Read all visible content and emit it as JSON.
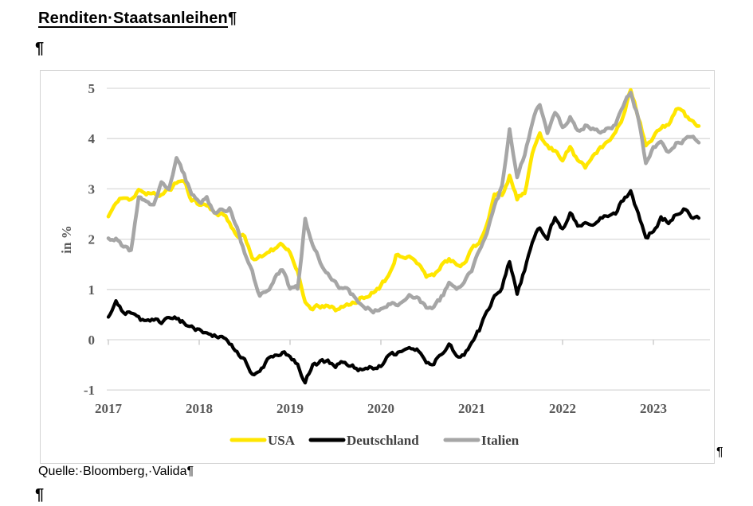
{
  "document": {
    "title": {
      "text": "Renditen·Staatsanleihen",
      "paragraph_mark": "¶"
    },
    "empty_paragraph_mark": "¶",
    "chart_trailing_paragraph_mark": "¶",
    "source_line": {
      "text": "Quelle:·Bloomberg,·Valida",
      "paragraph_mark": "¶"
    },
    "final_paragraph_mark": "¶"
  },
  "style": {
    "gridline_color": "#d9d9d9",
    "axis_tick_color": "#c6c6c6",
    "axis_text_color": "#595959",
    "legend_text_color": "#404040",
    "chart_border_color": "#d4d4d4",
    "usa_color": "#ffe600",
    "deutschland_color": "#000000",
    "italien_color": "#a6a6a6"
  },
  "chart_data": {
    "type": "line",
    "title": "",
    "xlabel": "",
    "ylabel": "in %",
    "ylim": [
      -1,
      5
    ],
    "y_ticks": [
      -1,
      0,
      1,
      2,
      3,
      4,
      5
    ],
    "x_tick_labels": [
      "2017",
      "2018",
      "2019",
      "2020",
      "2021",
      "2022",
      "2023"
    ],
    "x_span_years": 6.5,
    "points_per_year": 12,
    "grid": true,
    "legend_position": "bottom",
    "series": [
      {
        "name": "USA",
        "color": "#ffe600",
        "values": [
          2.45,
          2.75,
          2.82,
          2.8,
          2.95,
          2.88,
          2.92,
          2.89,
          2.98,
          3.12,
          3.18,
          2.77,
          2.68,
          2.68,
          2.5,
          2.52,
          2.32,
          2.05,
          2.05,
          1.6,
          1.68,
          1.72,
          1.8,
          1.88,
          1.72,
          1.4,
          0.72,
          0.64,
          0.67,
          0.7,
          0.58,
          0.66,
          0.68,
          0.8,
          0.86,
          0.92,
          1.05,
          1.3,
          1.68,
          1.62,
          1.6,
          1.5,
          1.28,
          1.28,
          1.45,
          1.58,
          1.52,
          1.48,
          1.78,
          1.95,
          2.3,
          2.85,
          2.9,
          3.25,
          2.82,
          2.95,
          3.7,
          4.05,
          3.85,
          3.75,
          3.52,
          3.85,
          3.58,
          3.45,
          3.62,
          3.78,
          3.92,
          4.15,
          4.45,
          4.95,
          4.45,
          3.88,
          4.05,
          4.22,
          4.25,
          4.62,
          4.48,
          4.35,
          4.25
        ]
      },
      {
        "name": "Deutschland",
        "color": "#000000",
        "values": [
          0.46,
          0.74,
          0.57,
          0.52,
          0.42,
          0.35,
          0.4,
          0.35,
          0.46,
          0.42,
          0.33,
          0.25,
          0.2,
          0.12,
          0.08,
          0.02,
          -0.1,
          -0.26,
          -0.38,
          -0.7,
          -0.6,
          -0.42,
          -0.33,
          -0.22,
          -0.38,
          -0.5,
          -0.85,
          -0.46,
          -0.45,
          -0.42,
          -0.5,
          -0.42,
          -0.5,
          -0.6,
          -0.57,
          -0.58,
          -0.5,
          -0.3,
          -0.3,
          -0.22,
          -0.15,
          -0.2,
          -0.42,
          -0.45,
          -0.28,
          -0.12,
          -0.3,
          -0.3,
          -0.02,
          0.2,
          0.55,
          0.88,
          1.05,
          1.55,
          0.9,
          1.4,
          1.95,
          2.25,
          1.98,
          2.45,
          2.22,
          2.52,
          2.28,
          2.35,
          2.32,
          2.42,
          2.5,
          2.55,
          2.78,
          2.92,
          2.52,
          1.98,
          2.2,
          2.42,
          2.35,
          2.52,
          2.62,
          2.48,
          2.42
        ]
      },
      {
        "name": "Italien",
        "color": "#a6a6a6",
        "values": [
          2.0,
          1.98,
          1.85,
          1.76,
          2.85,
          2.7,
          2.7,
          3.1,
          3.05,
          3.6,
          3.3,
          2.85,
          2.72,
          2.8,
          2.55,
          2.58,
          2.62,
          2.25,
          1.7,
          1.35,
          0.88,
          0.95,
          1.25,
          1.38,
          1.0,
          1.02,
          2.4,
          1.9,
          1.52,
          1.35,
          1.12,
          1.02,
          0.92,
          0.75,
          0.64,
          0.56,
          0.62,
          0.72,
          0.68,
          0.82,
          0.9,
          0.82,
          0.66,
          0.62,
          0.84,
          1.1,
          1.0,
          1.12,
          1.4,
          1.8,
          2.08,
          2.62,
          3.05,
          4.15,
          3.25,
          3.7,
          4.35,
          4.7,
          4.15,
          4.55,
          4.2,
          4.45,
          4.15,
          4.25,
          4.2,
          4.12,
          4.2,
          4.25,
          4.6,
          4.92,
          4.42,
          3.5,
          3.8,
          3.9,
          3.7,
          3.9,
          3.95,
          4.05,
          3.92
        ]
      }
    ]
  }
}
